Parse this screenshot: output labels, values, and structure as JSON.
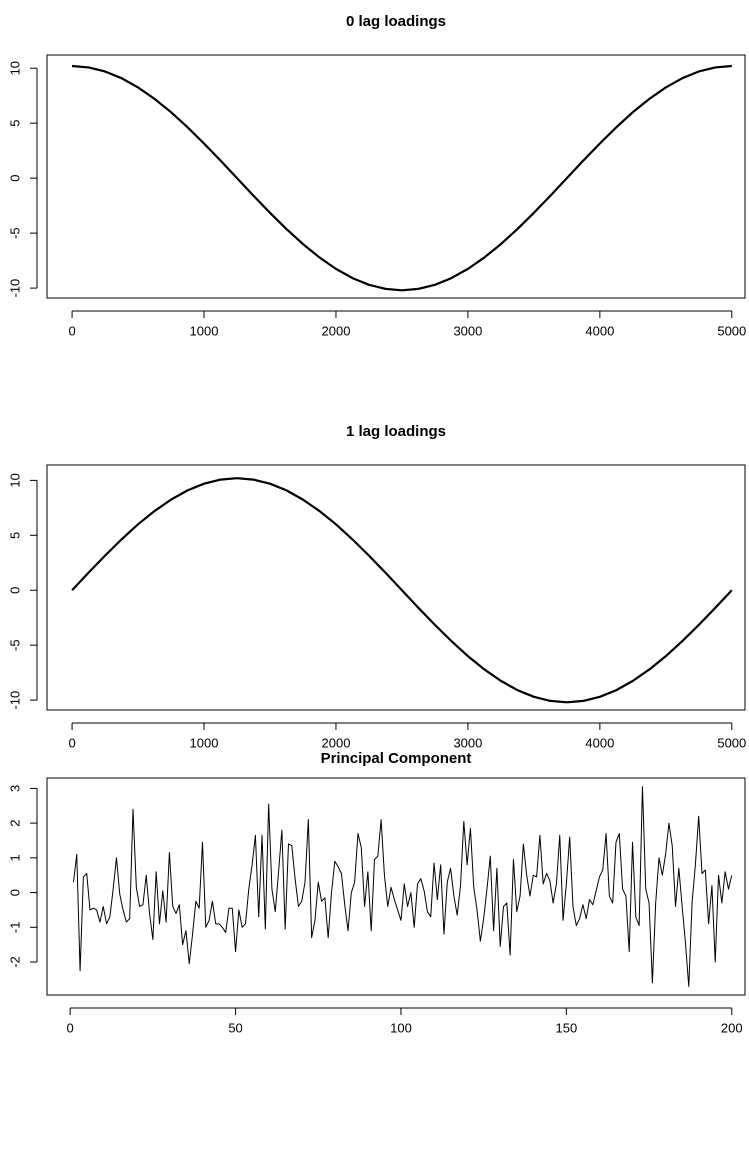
{
  "chart_data": [
    {
      "type": "line",
      "title": "0 lag loadings",
      "x": [
        0,
        125,
        250,
        375,
        500,
        625,
        750,
        875,
        1000,
        1125,
        1250,
        1375,
        1500,
        1625,
        1750,
        1875,
        2000,
        2125,
        2250,
        2375,
        2500,
        2625,
        2750,
        2875,
        3000,
        3125,
        3250,
        3375,
        3500,
        3625,
        3750,
        3875,
        4000,
        4125,
        4250,
        4375,
        4500,
        4625,
        4750,
        4875,
        5000
      ],
      "values": [
        10.2,
        10.07,
        9.7,
        9.09,
        8.25,
        7.21,
        6.0,
        4.63,
        3.15,
        1.6,
        0,
        -1.6,
        -3.15,
        -4.63,
        -6.0,
        -7.21,
        -8.25,
        -9.09,
        -9.7,
        -10.07,
        -10.2,
        -10.07,
        -9.7,
        -9.09,
        -8.25,
        -7.21,
        -6.0,
        -4.63,
        -3.15,
        -1.6,
        0,
        1.6,
        3.15,
        4.63,
        6.0,
        7.21,
        8.25,
        9.09,
        9.7,
        10.07,
        10.2
      ],
      "color": "#000000",
      "xlim": [
        -190,
        5100
      ],
      "ylim": [
        -10.9,
        11.2
      ],
      "xticks": [
        0,
        1000,
        2000,
        3000,
        4000,
        5000
      ],
      "yticks": [
        -10,
        -5,
        0,
        5,
        10
      ]
    },
    {
      "type": "line",
      "title": "1 lag loadings",
      "x": [
        0,
        125,
        250,
        375,
        500,
        625,
        750,
        875,
        1000,
        1125,
        1250,
        1375,
        1500,
        1625,
        1750,
        1875,
        2000,
        2125,
        2250,
        2375,
        2500,
        2625,
        2750,
        2875,
        3000,
        3125,
        3250,
        3375,
        3500,
        3625,
        3750,
        3875,
        4000,
        4125,
        4250,
        4375,
        4500,
        4625,
        4750,
        4875,
        5000
      ],
      "values": [
        0,
        1.6,
        3.15,
        4.63,
        6.0,
        7.21,
        8.25,
        9.09,
        9.7,
        10.07,
        10.2,
        10.07,
        9.7,
        9.09,
        8.25,
        7.21,
        6.0,
        4.63,
        3.15,
        1.6,
        0,
        -1.6,
        -3.15,
        -4.63,
        -6.0,
        -7.21,
        -8.25,
        -9.09,
        -9.7,
        -10.07,
        -10.2,
        -10.07,
        -9.7,
        -9.09,
        -8.25,
        -7.21,
        -6.0,
        -4.63,
        -3.15,
        -1.6,
        0
      ],
      "color": "#000000",
      "xlim": [
        -190,
        5100
      ],
      "ylim": [
        -10.9,
        11.4
      ],
      "xticks": [
        0,
        1000,
        2000,
        3000,
        4000,
        5000
      ],
      "yticks": [
        -10,
        -5,
        0,
        5,
        10
      ]
    },
    {
      "type": "line",
      "title": "Principal Component",
      "x": [
        1,
        2,
        3,
        4,
        5,
        6,
        7,
        8,
        9,
        10,
        11,
        12,
        13,
        14,
        15,
        16,
        17,
        18,
        19,
        20,
        21,
        22,
        23,
        24,
        25,
        26,
        27,
        28,
        29,
        30,
        31,
        32,
        33,
        34,
        35,
        36,
        37,
        38,
        39,
        40,
        41,
        42,
        43,
        44,
        45,
        46,
        47,
        48,
        49,
        50,
        51,
        52,
        53,
        54,
        55,
        56,
        57,
        58,
        59,
        60,
        61,
        62,
        63,
        64,
        65,
        66,
        67,
        68,
        69,
        70,
        71,
        72,
        73,
        74,
        75,
        76,
        77,
        78,
        79,
        80,
        81,
        82,
        83,
        84,
        85,
        86,
        87,
        88,
        89,
        90,
        91,
        92,
        93,
        94,
        95,
        96,
        97,
        98,
        99,
        100,
        101,
        102,
        103,
        104,
        105,
        106,
        107,
        108,
        109,
        110,
        111,
        112,
        113,
        114,
        115,
        116,
        117,
        118,
        119,
        120,
        121,
        122,
        123,
        124,
        125,
        126,
        127,
        128,
        129,
        130,
        131,
        132,
        133,
        134,
        135,
        136,
        137,
        138,
        139,
        140,
        141,
        142,
        143,
        144,
        145,
        146,
        147,
        148,
        149,
        150,
        151,
        152,
        153,
        154,
        155,
        156,
        157,
        158,
        159,
        160,
        161,
        162,
        163,
        164,
        165,
        166,
        167,
        168,
        169,
        170,
        171,
        172,
        173,
        174,
        175,
        176,
        177,
        178,
        179,
        180,
        181,
        182,
        183,
        184,
        185,
        186,
        187,
        188,
        189,
        190,
        191,
        192,
        193,
        194,
        195,
        196,
        197,
        198,
        199,
        200
      ],
      "values": [
        0.3,
        1.1,
        -2.25,
        0.45,
        0.55,
        -0.5,
        -0.45,
        -0.5,
        -0.85,
        -0.4,
        -0.9,
        -0.7,
        0.1,
        1.0,
        -0.05,
        -0.5,
        -0.85,
        -0.75,
        2.4,
        0.15,
        -0.4,
        -0.35,
        0.5,
        -0.6,
        -1.35,
        0.6,
        -0.9,
        0.05,
        -0.85,
        1.15,
        -0.4,
        -0.6,
        -0.35,
        -1.5,
        -1.1,
        -2.05,
        -1.2,
        -0.25,
        -0.45,
        1.45,
        -1.0,
        -0.8,
        -0.25,
        -0.9,
        -0.9,
        -1.0,
        -1.15,
        -0.45,
        -0.45,
        -1.7,
        -0.5,
        -1.0,
        -0.9,
        0.1,
        0.8,
        1.65,
        -0.7,
        1.65,
        -1.05,
        2.55,
        0.1,
        -0.55,
        0.6,
        1.8,
        -1.05,
        1.4,
        1.35,
        0.4,
        -0.4,
        -0.25,
        0.3,
        2.1,
        -1.3,
        -0.8,
        0.3,
        -0.25,
        -0.15,
        -1.3,
        0.0,
        0.9,
        0.75,
        0.55,
        -0.35,
        -1.1,
        0.0,
        0.3,
        1.7,
        1.3,
        -0.4,
        0.6,
        -1.1,
        0.95,
        1.05,
        2.1,
        0.5,
        -0.4,
        0.15,
        -0.2,
        -0.5,
        -0.8,
        0.25,
        -0.4,
        0.0,
        -1.0,
        0.25,
        0.4,
        0.05,
        -0.55,
        -0.7,
        0.85,
        -0.2,
        0.8,
        -1.2,
        0.3,
        0.7,
        -0.1,
        -0.65,
        0.2,
        2.05,
        0.8,
        1.85,
        0.15,
        -0.5,
        -1.4,
        -0.75,
        0.1,
        1.05,
        -1.1,
        0.7,
        -1.55,
        -0.4,
        -0.3,
        -1.8,
        0.95,
        -0.55,
        -0.1,
        1.4,
        0.5,
        -0.1,
        0.5,
        0.45,
        1.65,
        0.25,
        0.55,
        0.35,
        -0.3,
        0.25,
        1.65,
        -0.8,
        0.25,
        1.6,
        -0.4,
        -0.95,
        -0.75,
        -0.35,
        -0.75,
        -0.2,
        -0.35,
        0.05,
        0.45,
        0.65,
        1.7,
        -0.1,
        -0.3,
        1.45,
        1.7,
        0.1,
        -0.1,
        -1.7,
        1.45,
        -0.7,
        -0.95,
        3.05,
        0.1,
        -0.3,
        -2.6,
        -0.3,
        1.0,
        0.5,
        1.1,
        2.0,
        1.35,
        -0.4,
        0.7,
        -0.4,
        -1.45,
        -2.7,
        -0.3,
        0.8,
        2.2,
        0.55,
        0.65,
        -0.9,
        0.2,
        -2.0,
        0.5,
        -0.3,
        0.6,
        0.1,
        0.5
      ],
      "color": "#000000",
      "xlim": [
        -7,
        204
      ],
      "ylim": [
        -2.95,
        3.3
      ],
      "xticks": [
        0,
        50,
        100,
        150,
        200
      ],
      "yticks": [
        -2,
        -1,
        0,
        1,
        2,
        3
      ]
    }
  ]
}
